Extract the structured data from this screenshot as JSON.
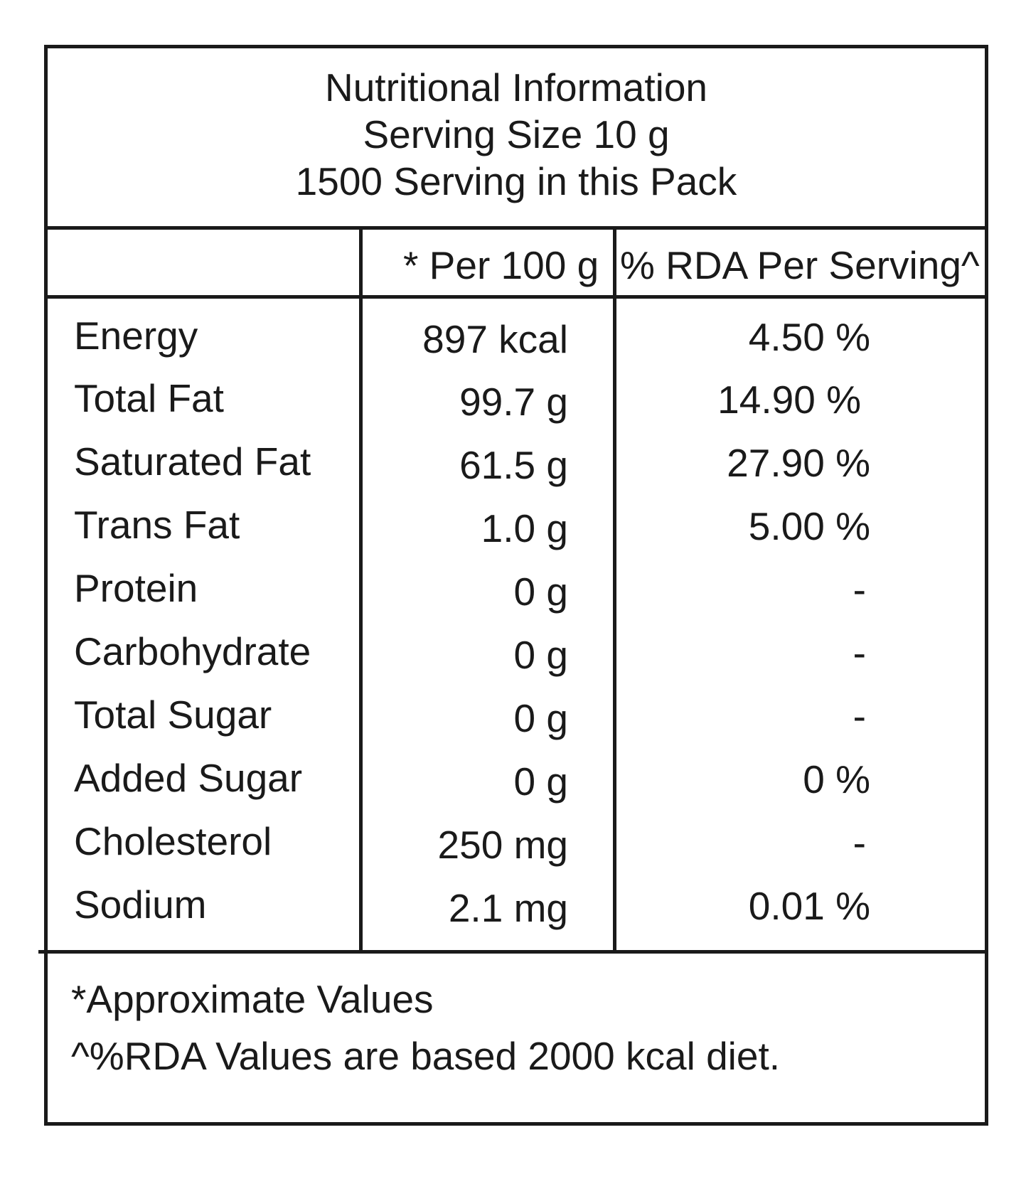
{
  "header": {
    "title": "Nutritional Information",
    "serving_size": "Serving Size 10 g",
    "servings_per_pack": "1500 Serving in this Pack"
  },
  "columns": {
    "per_100g": "* Per 100 g",
    "rda_per_serving": "% RDA Per Serving^"
  },
  "rows": [
    {
      "label": "Energy",
      "per_100g": "897 kcal",
      "rda": "4.50 %"
    },
    {
      "label": "Total Fat",
      "per_100g": "99.7 g",
      "rda": "14.90 %"
    },
    {
      "label": "Saturated Fat",
      "per_100g": "61.5 g",
      "rda": "27.90 %"
    },
    {
      "label": "Trans Fat",
      "per_100g": "1.0 g",
      "rda": "5.00 %"
    },
    {
      "label": "Protein",
      "per_100g": "0 g",
      "rda": "-"
    },
    {
      "label": "Carbohydrate",
      "per_100g": "0 g",
      "rda": "-"
    },
    {
      "label": "Total Sugar",
      "per_100g": "0 g",
      "rda": "-"
    },
    {
      "label": "Added Sugar",
      "per_100g": "0 g",
      "rda": "0 %"
    },
    {
      "label": "Cholesterol",
      "per_100g": "250 mg",
      "rda": "-"
    },
    {
      "label": "Sodium",
      "per_100g": "2.1 mg",
      "rda": "0.01 %"
    }
  ],
  "footnotes": {
    "approximate": "*Approximate Values",
    "rda_basis": "^%RDA Values are based 2000 kcal diet."
  }
}
